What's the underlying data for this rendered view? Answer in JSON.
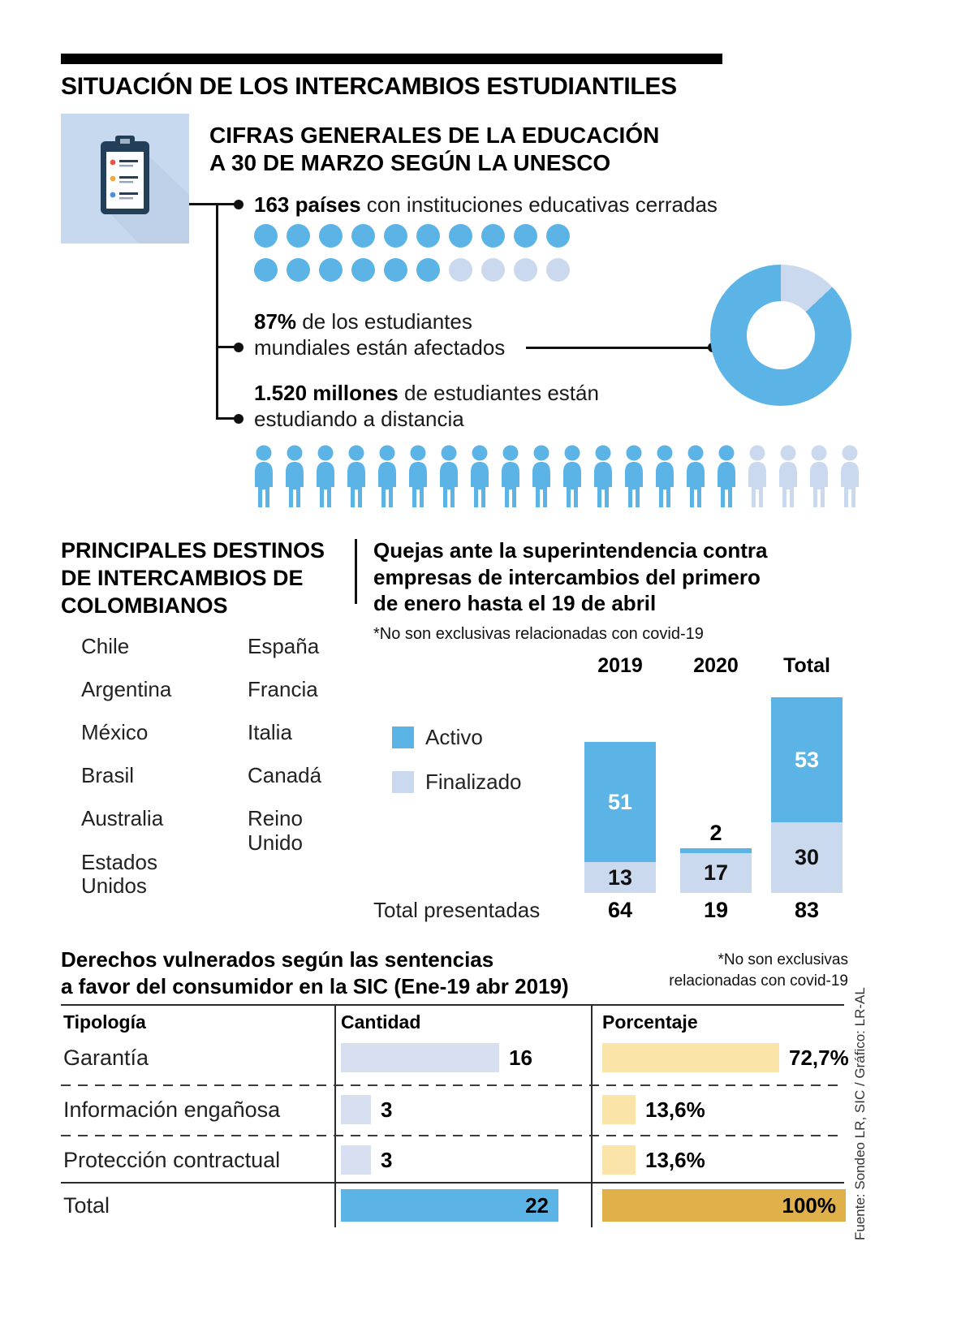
{
  "page": {
    "title": "SITUACIÓN DE LOS INTERCAMBIOS ESTUDIANTILES",
    "source_credit": "Fuente: Sondeo LR, SIC / Gráfico: LR-AL"
  },
  "colors": {
    "blue": "#5CB4E6",
    "light_blue": "#CBD9EF",
    "lavender": "#D8DFF1",
    "yellow": "#FBE4A9",
    "gold": "#E0B14B",
    "icon_bg": "#C7D9EE",
    "navy": "#223E58"
  },
  "sections": {
    "unesco": {
      "heading_lines": [
        "CIFRAS GENERALES DE LA EDUCACIÓN",
        "A 30 DE MARZO SEGÚN LA UNESCO"
      ],
      "facts": [
        {
          "bold": "163 países",
          "rest": " con instituciones educativas cerradas"
        },
        {
          "bold": "87%",
          "rest": " de los estudiantes",
          "line2": "mundiales están afectados"
        },
        {
          "bold": "1.520 millones",
          "rest": " de estudiantes están",
          "line2": "estudiando a distancia"
        }
      ]
    },
    "destinations": {
      "title_lines": [
        "PRINCIPALES DESTINOS",
        "DE INTERCAMBIOS DE",
        "COLOMBIANOS"
      ],
      "col1": [
        "Chile",
        "Argentina",
        "México",
        "Brasil",
        "Australia",
        "Estados Unidos"
      ],
      "col2": [
        "España",
        "Francia",
        "Italia",
        "Canadá",
        "Reino Unido"
      ]
    },
    "quejas": {
      "title_lines": [
        "Quejas ante la superintendencia contra",
        "empresas de intercambios del primero",
        "de enero hasta el 19 de abril"
      ],
      "note": "*No son exclusivas relacionadas con covid-19"
    },
    "rights": {
      "title_lines": [
        "Derechos vulnerados según las sentencias",
        "a favor del consumidor en la SIC (Ene-19 abr 2019)"
      ],
      "note_lines": [
        "*No son exclusivas",
        "relacionadas con covid-19"
      ]
    }
  },
  "chart_data": [
    {
      "type": "pictogram",
      "title": "163 países con instituciones educativas cerradas",
      "unit_shape": "dot",
      "total_units": 20,
      "filled_units": 16,
      "value": 163
    },
    {
      "type": "pie",
      "donut": true,
      "title": "87% de los estudiantes mundiales están afectados",
      "labels": [
        "Afectados",
        "No afectados"
      ],
      "values": [
        87,
        13
      ]
    },
    {
      "type": "pictogram",
      "title": "1.520 millones de estudiantes están estudiando a distancia",
      "unit_shape": "person",
      "total_units": 20,
      "filled_units": 16,
      "value": "1.520 millones"
    },
    {
      "type": "bar",
      "stacked": true,
      "title": "Quejas ante la superintendencia contra empresas de intercambios del primero de enero hasta el 19 de abril",
      "note": "*No son exclusivas relacionadas con covid-19",
      "categories": [
        "2019",
        "2020",
        "Total"
      ],
      "series": [
        {
          "name": "Activo",
          "color": "#5CB4E6",
          "values": [
            51,
            2,
            53
          ]
        },
        {
          "name": "Finalizado",
          "color": "#CBD9EF",
          "values": [
            13,
            17,
            30
          ]
        }
      ],
      "totals_label": "Total presentadas",
      "totals": [
        64,
        19,
        83
      ],
      "ylim": [
        0,
        83
      ]
    },
    {
      "type": "table",
      "title": "Derechos vulnerados según las sentencias a favor del consumidor en la SIC (Ene-19 abr 2019)",
      "note": "*No son exclusivas relacionadas con covid-19",
      "columns": [
        "Tipología",
        "Cantidad",
        "Porcentaje"
      ],
      "rows": [
        {
          "tipologia": "Garantía",
          "cantidad": 16,
          "porcentaje": 72.7,
          "porcentaje_label": "72,7%",
          "is_total": false
        },
        {
          "tipologia": "Información engañosa",
          "cantidad": 3,
          "porcentaje": 13.6,
          "porcentaje_label": "13,6%",
          "is_total": false
        },
        {
          "tipologia": "Protección contractual",
          "cantidad": 3,
          "porcentaje": 13.6,
          "porcentaje_label": "13,6%",
          "is_total": false
        },
        {
          "tipologia": "Total",
          "cantidad": 22,
          "porcentaje": 100,
          "porcentaje_label": "100%",
          "is_total": true
        }
      ]
    }
  ]
}
